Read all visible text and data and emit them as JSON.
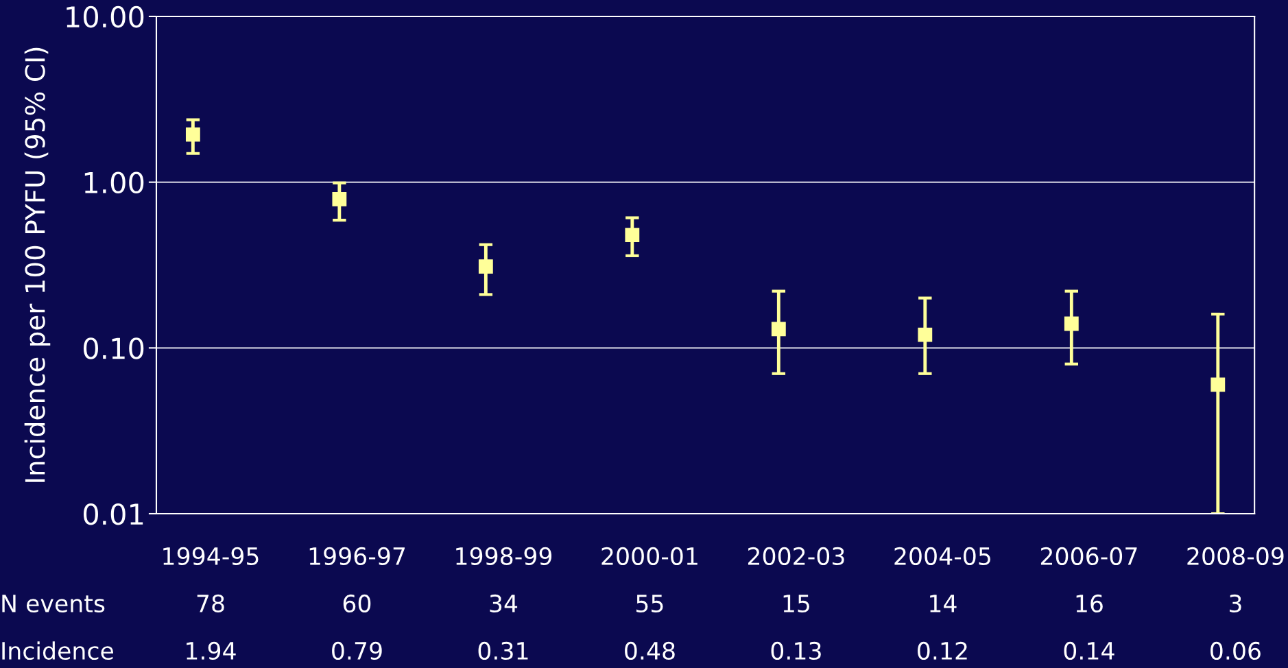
{
  "chart_data": {
    "type": "scatter",
    "ylabel": "Incidence per 100 PYFU (95% CI)",
    "categories": [
      "1994-95",
      "1996-97",
      "1998-99",
      "2000-01",
      "2002-03",
      "2004-05",
      "2006-07",
      "2008-09"
    ],
    "values": [
      1.94,
      0.79,
      0.31,
      0.48,
      0.13,
      0.12,
      0.14,
      0.06
    ],
    "errors": [
      [
        1.49,
        2.38
      ],
      [
        0.59,
        0.99
      ],
      [
        0.21,
        0.42
      ],
      [
        0.36,
        0.61
      ],
      [
        0.07,
        0.22
      ],
      [
        0.07,
        0.2
      ],
      [
        0.08,
        0.22
      ],
      [
        0.01,
        0.16
      ]
    ],
    "color": "#ffff99",
    "marker": "square",
    "log": "y",
    "ylim": [
      0.01,
      10
    ],
    "yticks": [
      {
        "value": 0.01,
        "label": "0.01"
      },
      {
        "value": 0.1,
        "label": "0.10"
      },
      {
        "value": 1,
        "label": "1.00"
      },
      {
        "value": 10,
        "label": "10.00"
      }
    ],
    "grid": "y",
    "data_labels": true,
    "annotations": [
      "N events",
      "78",
      "60",
      "34",
      "55",
      "15",
      "14",
      "16",
      "3",
      "Incidence"
    ]
  }
}
